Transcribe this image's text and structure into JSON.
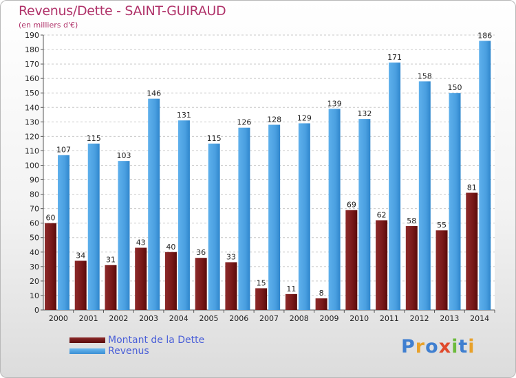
{
  "header": {
    "title": "Revenus/Dette - SAINT-GUIRAUD",
    "subtitle": "(en milliers d'€)"
  },
  "legend": {
    "debt_label": "Montant de la Dette",
    "revenue_label": "Revenus"
  },
  "logo": {
    "text": "Proxiti",
    "letters": [
      "P",
      "r",
      "o",
      "x",
      "i",
      "t",
      "i"
    ],
    "colors": [
      "#3f7fd0",
      "#e8a12a",
      "#3f7fd0",
      "#e04a2c",
      "#6cbb3c",
      "#3f7fd0",
      "#e8a12a"
    ]
  },
  "colors": {
    "debt": "#7a1a1a",
    "revenue": "#4a9fe0"
  },
  "chart_data": {
    "type": "bar",
    "title": "Revenus/Dette - SAINT-GUIRAUD",
    "subtitle": "(en milliers d'€)",
    "categories": [
      "2000",
      "2001",
      "2002",
      "2003",
      "2004",
      "2005",
      "2006",
      "2007",
      "2008",
      "2009",
      "2010",
      "2011",
      "2012",
      "2013",
      "2014"
    ],
    "series": [
      {
        "name": "Montant de la Dette",
        "values": [
          60,
          34,
          31,
          43,
          40,
          36,
          33,
          15,
          11,
          8,
          69,
          62,
          58,
          55,
          81
        ]
      },
      {
        "name": "Revenus",
        "values": [
          107,
          115,
          103,
          146,
          131,
          115,
          126,
          128,
          129,
          139,
          132,
          171,
          158,
          150,
          186
        ]
      }
    ],
    "yticks": [
      0,
      10,
      20,
      30,
      40,
      50,
      60,
      70,
      80,
      90,
      100,
      110,
      120,
      130,
      140,
      150,
      160,
      170,
      180,
      190
    ],
    "ylim": [
      0,
      190
    ],
    "grid": true,
    "legend_position": "bottom-left"
  }
}
